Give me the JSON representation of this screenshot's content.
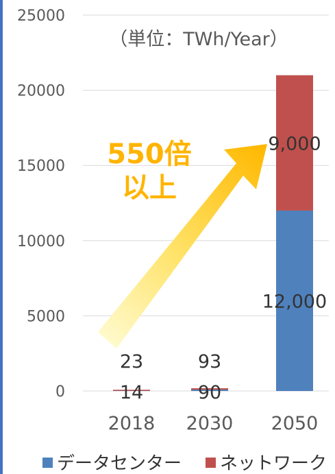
{
  "chart_data": {
    "type": "bar",
    "stacked": true,
    "categories": [
      "2018",
      "2030",
      "2050"
    ],
    "series": [
      {
        "name": "データセンター",
        "values": [
          14,
          90,
          12000
        ],
        "labels": [
          "14",
          "90",
          "12,000"
        ],
        "color": "#4f81bd"
      },
      {
        "name": "ネットワーク",
        "values": [
          23,
          93,
          9000
        ],
        "labels": [
          "23",
          "93",
          "9,000"
        ],
        "color": "#c0504d"
      }
    ],
    "ylim": [
      0,
      25000
    ],
    "yticks": [
      "0",
      "5000",
      "10000",
      "15000",
      "20000",
      "25000"
    ],
    "unit_note": "（単位：TWh/Year）",
    "annotation": {
      "line1": "550倍",
      "line2": "以上",
      "arrow_color": "#ffc000"
    },
    "grid": true,
    "legend_position": "bottom"
  }
}
